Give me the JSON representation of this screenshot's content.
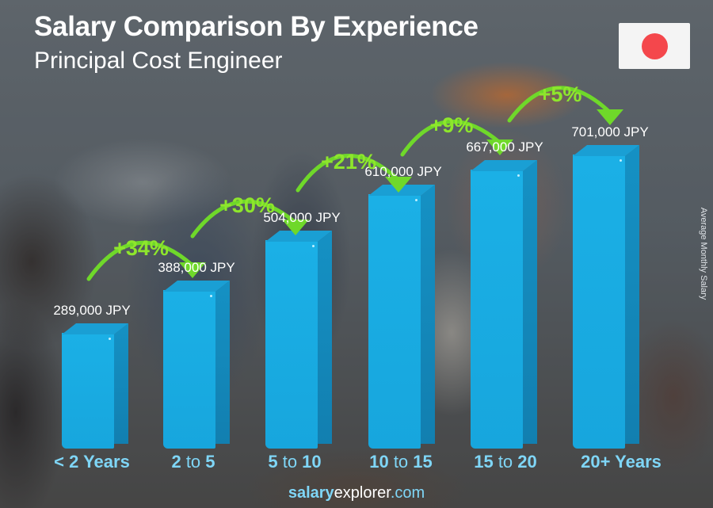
{
  "header": {
    "title": "Salary Comparison By Experience",
    "subtitle": "Principal Cost Engineer"
  },
  "flag": {
    "country": "Japan",
    "icon": "japan-flag-icon",
    "background": "#f4f4f4",
    "dot_color": "#f4474c"
  },
  "axis": {
    "ylabel": "Average Monthly Salary"
  },
  "categories": [
    {
      "parts": [
        {
          "t": "< 2 Years",
          "b": true
        }
      ]
    },
    {
      "parts": [
        {
          "t": "2",
          "b": true
        },
        {
          "t": " to ",
          "b": false
        },
        {
          "t": "5",
          "b": true
        }
      ]
    },
    {
      "parts": [
        {
          "t": "5",
          "b": true
        },
        {
          "t": " to ",
          "b": false
        },
        {
          "t": "10",
          "b": true
        }
      ]
    },
    {
      "parts": [
        {
          "t": "10",
          "b": true
        },
        {
          "t": " to ",
          "b": false
        },
        {
          "t": "15",
          "b": true
        }
      ]
    },
    {
      "parts": [
        {
          "t": "15",
          "b": true
        },
        {
          "t": " to ",
          "b": false
        },
        {
          "t": "20",
          "b": true
        }
      ]
    },
    {
      "parts": [
        {
          "t": "20+ Years",
          "b": true
        }
      ]
    }
  ],
  "values_text": [
    "289,000 JPY",
    "388,000 JPY",
    "504,000 JPY",
    "610,000 JPY",
    "667,000 JPY",
    "701,000 JPY"
  ],
  "increases_text": [
    "+34%",
    "+30%",
    "+21%",
    "+9%",
    "+5%"
  ],
  "footer": {
    "part1": "salary",
    "part2": "explorer",
    "part3": ".com"
  },
  "colors": {
    "bar_front": "#1bb0e6",
    "bar_side": "#1488bb",
    "increase_green": "#8ee62c",
    "category_label": "#7fd6f7"
  },
  "chart_data": {
    "type": "bar",
    "title": "Salary Comparison By Experience",
    "subtitle": "Principal Cost Engineer",
    "categories": [
      "< 2 Years",
      "2 to 5",
      "5 to 10",
      "10 to 15",
      "15 to 20",
      "20+ Years"
    ],
    "values": [
      289000,
      388000,
      504000,
      610000,
      667000,
      701000
    ],
    "unit": "JPY",
    "value_labels": [
      "289,000 JPY",
      "388,000 JPY",
      "504,000 JPY",
      "610,000 JPY",
      "667,000 JPY",
      "701,000 JPY"
    ],
    "increases": [
      "+34%",
      "+30%",
      "+21%",
      "+9%",
      "+5%"
    ],
    "xlabel": "",
    "ylabel": "Average Monthly Salary",
    "grid": false,
    "legend": null
  }
}
